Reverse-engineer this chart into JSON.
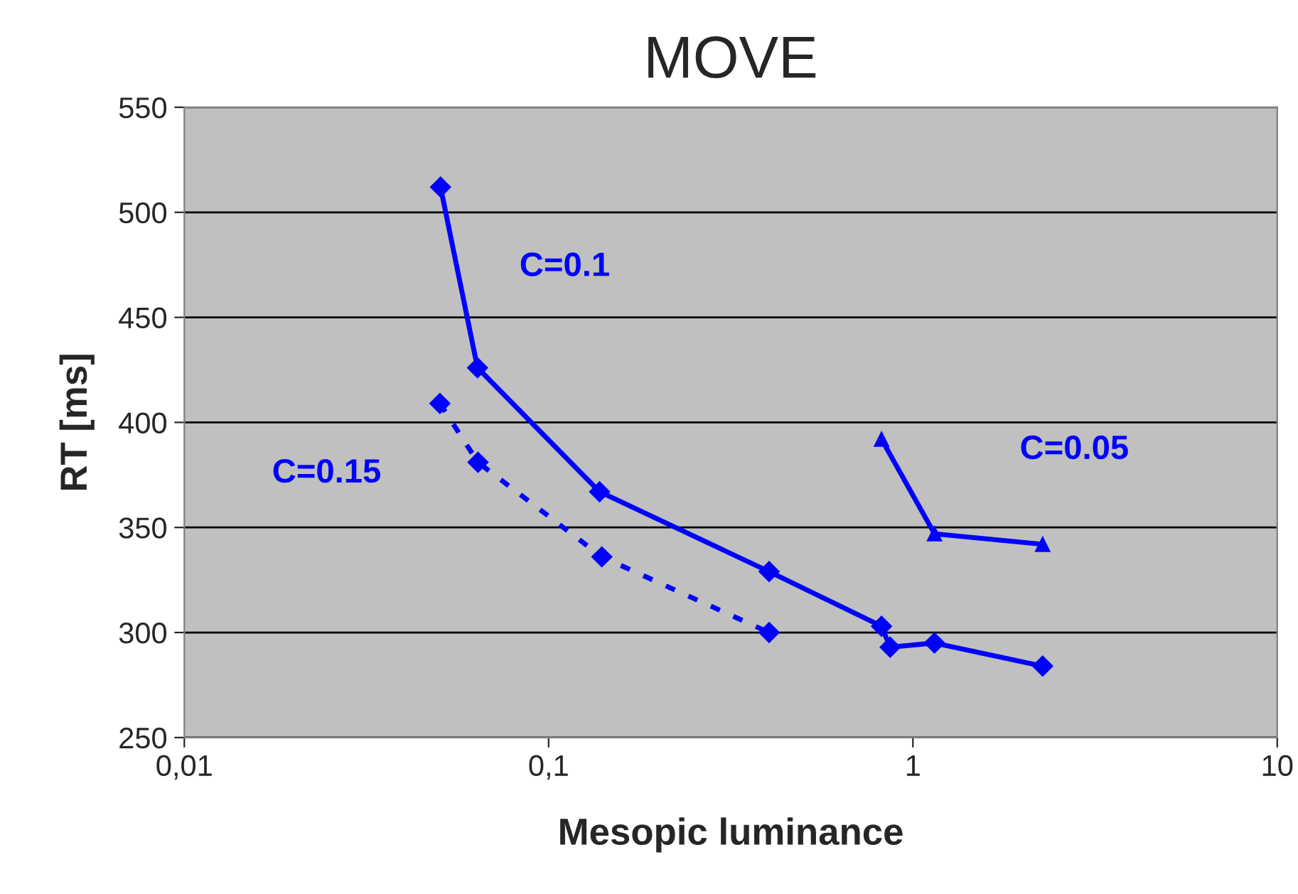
{
  "chart_data": {
    "type": "line",
    "title": "MOVE",
    "xlabel": "Mesopic luminance",
    "ylabel": "RT [ms]",
    "log": "x",
    "xlim": [
      0.01,
      10
    ],
    "xticks": [
      {
        "value": 0.01,
        "label": "0,01"
      },
      {
        "value": 0.1,
        "label": "0,1"
      },
      1,
      10
    ],
    "ylim": [
      250,
      550
    ],
    "yticks": [
      250,
      300,
      350,
      400,
      450,
      500,
      550
    ],
    "grid": "y",
    "legend": false,
    "series": [
      {
        "name": "C=0.1",
        "color": "#0000ff",
        "marker": "diamond",
        "line_style": "solid",
        "x": [
          0.0505,
          0.0638,
          0.138,
          0.403,
          0.82,
          0.866,
          1.146,
          2.27
        ],
        "values": [
          512,
          426,
          367,
          329,
          303,
          293,
          295,
          284
        ]
      },
      {
        "name": "C=0.15",
        "color": "#0000ff",
        "marker": "diamond",
        "line_style": "dotted",
        "x": [
          0.0503,
          0.064,
          0.14,
          0.403
        ],
        "values": [
          409,
          381,
          336,
          300
        ]
      },
      {
        "name": "C=0.05",
        "color": "#0000ff",
        "marker": "triangle",
        "line_style": "solid",
        "x": [
          0.82,
          1.146,
          2.27
        ],
        "values": [
          392,
          347,
          342
        ]
      }
    ]
  }
}
